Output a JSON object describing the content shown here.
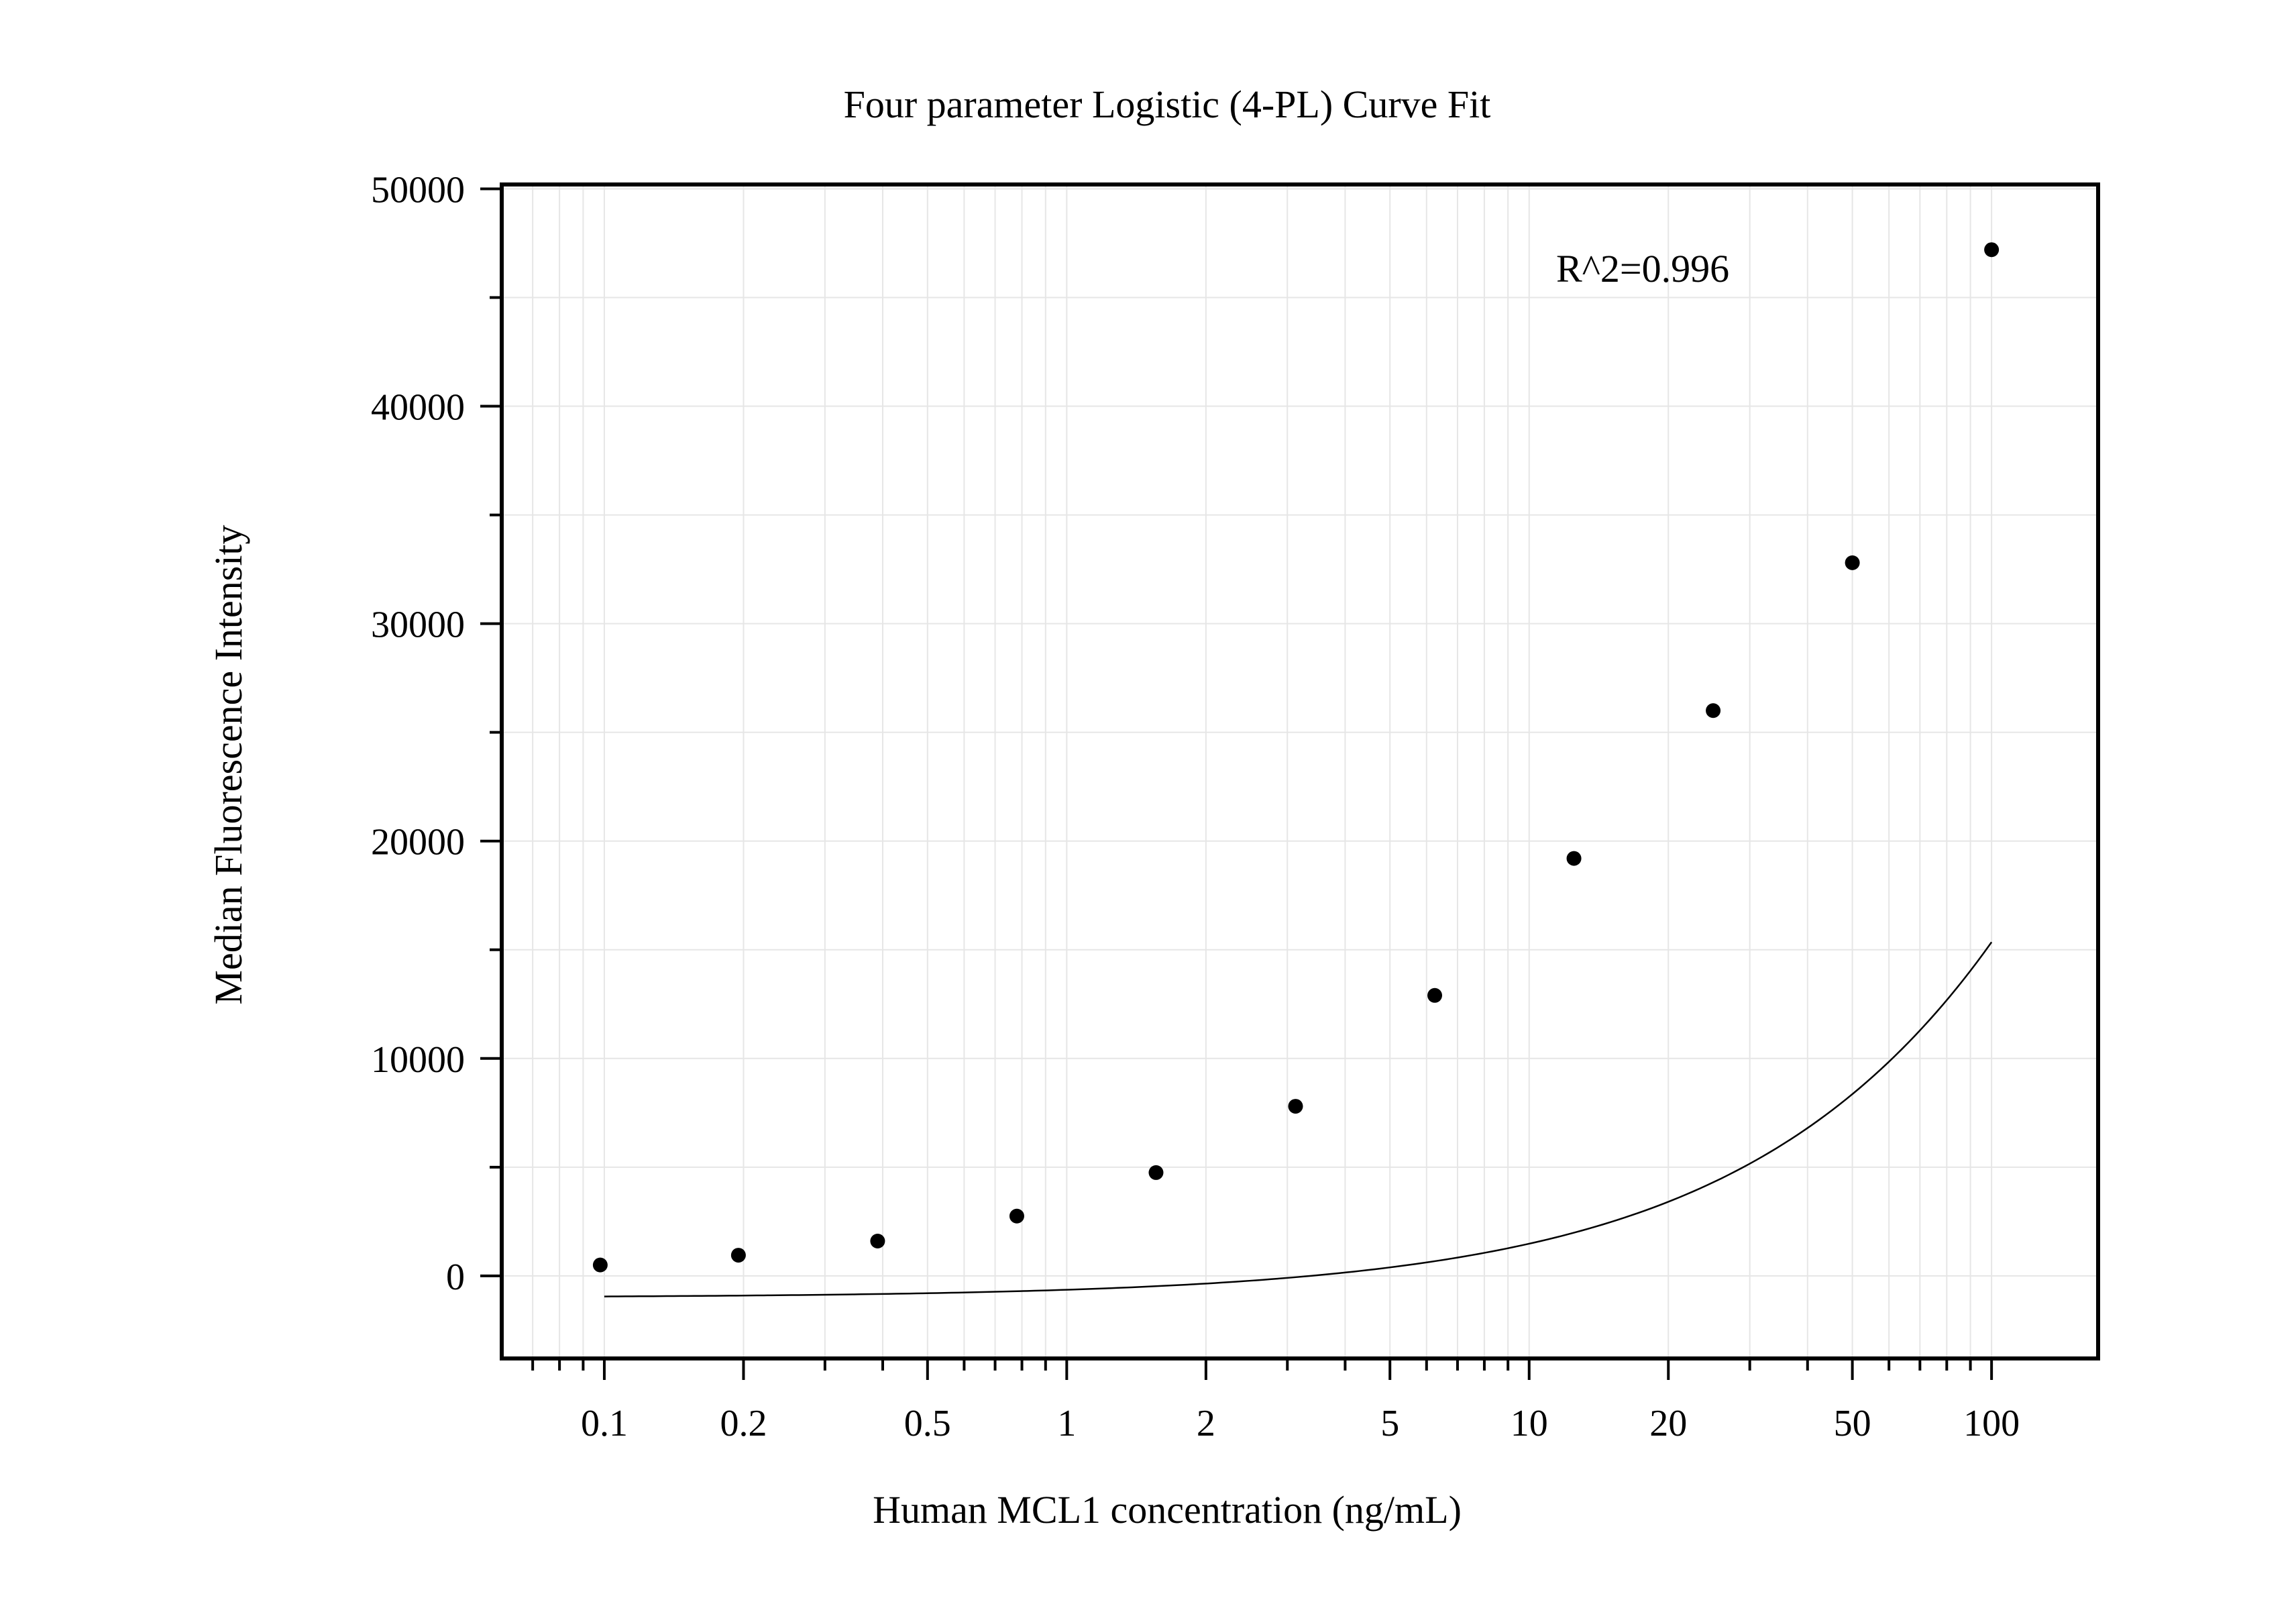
{
  "chart_data": {
    "type": "scatter",
    "title": "Four parameter Logistic (4-PL) Curve Fit",
    "xlabel": "Human MCL1 concentration (ng/mL)",
    "ylabel": "Median Fluorescence Intensity",
    "x_scale": "log",
    "xlim": [
      0.06,
      170
    ],
    "ylim": [
      -3800,
      50200
    ],
    "x_ticks": [
      0.1,
      0.2,
      0.5,
      1,
      2,
      5,
      10,
      20,
      50,
      100
    ],
    "x_tick_labels": [
      "0.1",
      "0.2",
      "0.5",
      "1",
      "2",
      "5",
      "10",
      "20",
      "50",
      "100"
    ],
    "y_ticks": [
      0,
      10000,
      20000,
      30000,
      40000,
      50000
    ],
    "y_tick_labels": [
      "0",
      "10000",
      "20000",
      "30000",
      "40000",
      "50000"
    ],
    "grid": true,
    "annotation": "R^2=0.996",
    "series": [
      {
        "points": [
          {
            "x": 0.098,
            "y": 500
          },
          {
            "x": 0.195,
            "y": 950
          },
          {
            "x": 0.39,
            "y": 1600
          },
          {
            "x": 0.78,
            "y": 2750
          },
          {
            "x": 1.56,
            "y": 4750
          },
          {
            "x": 3.125,
            "y": 7800
          },
          {
            "x": 6.25,
            "y": 12900
          },
          {
            "x": 12.5,
            "y": 19200
          },
          {
            "x": 25,
            "y": 26000
          },
          {
            "x": 50,
            "y": 32800
          },
          {
            "x": 100,
            "y": 47200
          }
        ]
      }
    ],
    "fit_curve": {
      "model": "4-PL",
      "A": -1000,
      "D": 300000,
      "C": 3000,
      "B": 0.84,
      "x_range": [
        0.1,
        100
      ]
    },
    "colors": {
      "points": "#000000",
      "curve": "#000000",
      "grid": "#e6e6e6",
      "axes": "#000000"
    }
  }
}
